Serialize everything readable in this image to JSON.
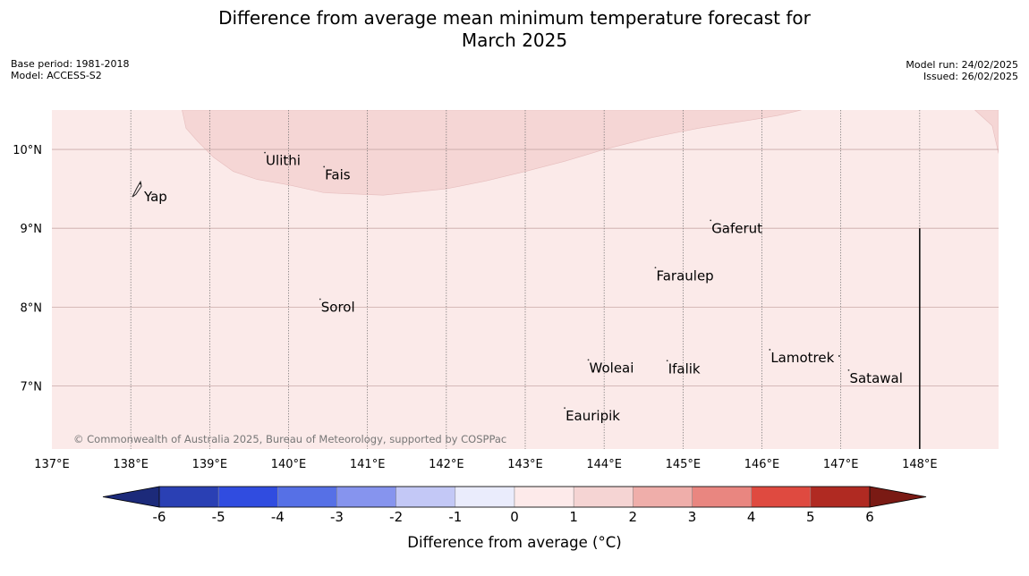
{
  "title": {
    "line1": "Difference from average mean minimum temperature forecast for",
    "line2": "March 2025"
  },
  "meta_left": {
    "base_period": "Base period: 1981-2018",
    "model": "Model: ACCESS-S2"
  },
  "meta_right": {
    "model_run": "Model run: 24/02/2025",
    "issued": "Issued: 26/02/2025"
  },
  "copyright": "© Commonwealth of Australia 2025, Bureau of Meteorology, supported by COSPPac",
  "map": {
    "lon_range": [
      137.0,
      149.0
    ],
    "lat_range": [
      6.2,
      10.5
    ],
    "lon_ticks": [
      {
        "value": 137,
        "label": "137°E"
      },
      {
        "value": 138,
        "label": "138°E"
      },
      {
        "value": 139,
        "label": "139°E"
      },
      {
        "value": 140,
        "label": "140°E"
      },
      {
        "value": 141,
        "label": "141°E"
      },
      {
        "value": 142,
        "label": "142°E"
      },
      {
        "value": 143,
        "label": "143°E"
      },
      {
        "value": 144,
        "label": "144°E"
      },
      {
        "value": 145,
        "label": "145°E"
      },
      {
        "value": 146,
        "label": "146°E"
      },
      {
        "value": 147,
        "label": "147°E"
      },
      {
        "value": 148,
        "label": "148°E"
      }
    ],
    "lat_ticks": [
      {
        "value": 10,
        "label": "10°N"
      },
      {
        "value": 9,
        "label": "9°N"
      },
      {
        "value": 8,
        "label": "8°N"
      },
      {
        "value": 7,
        "label": "7°N"
      }
    ],
    "background_fill": "#fbeae9",
    "warm_region_fill": "#f5d6d5",
    "warm_region_outline": [
      [
        138.65,
        10.5
      ],
      [
        138.7,
        10.27
      ],
      [
        138.85,
        10.1
      ],
      [
        139.05,
        9.9
      ],
      [
        139.3,
        9.72
      ],
      [
        139.6,
        9.62
      ],
      [
        140.0,
        9.55
      ],
      [
        140.45,
        9.45
      ],
      [
        141.2,
        9.42
      ],
      [
        142.0,
        9.5
      ],
      [
        142.5,
        9.6
      ],
      [
        143.0,
        9.72
      ],
      [
        143.5,
        9.85
      ],
      [
        144.0,
        10.0
      ],
      [
        144.6,
        10.15
      ],
      [
        145.2,
        10.27
      ],
      [
        145.9,
        10.38
      ],
      [
        146.2,
        10.43
      ],
      [
        146.5,
        10.5
      ]
    ],
    "warm_region_right_outline": [
      [
        148.7,
        10.5
      ],
      [
        148.92,
        10.3
      ],
      [
        149.0,
        9.95
      ],
      [
        149.0,
        10.5
      ]
    ],
    "islands": [
      {
        "name": "Yap",
        "lon": 138.1,
        "lat": 9.5
      },
      {
        "name": "Ulithi",
        "lon": 139.7,
        "lat": 9.96
      },
      {
        "name": "Fais",
        "lon": 140.45,
        "lat": 9.78
      },
      {
        "name": "Gaferut",
        "lon": 145.35,
        "lat": 9.1
      },
      {
        "name": "Faraulep",
        "lon": 144.65,
        "lat": 8.5
      },
      {
        "name": "Sorol",
        "lon": 140.4,
        "lat": 8.1
      },
      {
        "name": "Woleai",
        "lon": 143.8,
        "lat": 7.33
      },
      {
        "name": "Ifalik",
        "lon": 144.8,
        "lat": 7.32
      },
      {
        "name": "Lamotrek",
        "lon": 146.1,
        "lat": 7.46
      },
      {
        "name": "Satawal",
        "lon": 147.1,
        "lat": 7.2
      },
      {
        "name": "Eauripik",
        "lon": 143.5,
        "lat": 6.72
      }
    ],
    "boundary_line": {
      "lon": 148.0,
      "lat_from": 6.2,
      "lat_to": 9.0
    }
  },
  "colorbar": {
    "label": "Difference from average (°C)",
    "ticks": [
      "-6",
      "-5",
      "-4",
      "-3",
      "-2",
      "-1",
      "0",
      "1",
      "2",
      "3",
      "4",
      "5",
      "6"
    ],
    "low_extend_color": "#1c2a7a",
    "high_extend_color": "#7a1a14",
    "colors": [
      "#2a40b4",
      "#304ce0",
      "#5670e6",
      "#8694ee",
      "#c3c8f6",
      "#eaecfc",
      "#fdeaea",
      "#f5d4d3",
      "#efaeaa",
      "#e98680",
      "#df4a40",
      "#b02a22"
    ]
  }
}
